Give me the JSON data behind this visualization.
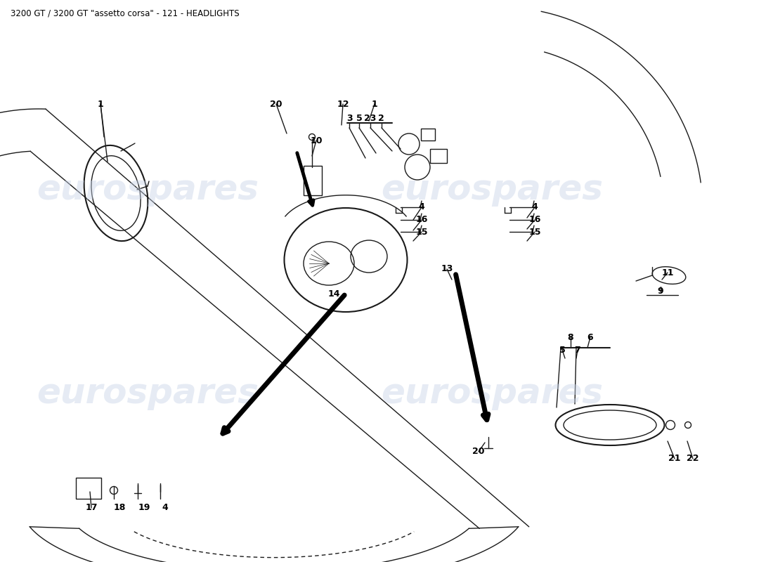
{
  "title": "3200 GT / 3200 GT \"assetto corsa\" - 121 - HEADLIGHTS",
  "title_fontsize": 8.5,
  "bg_color": "#ffffff",
  "fig_width": 11.0,
  "fig_height": 8.0,
  "watermark_text": "eurospares",
  "watermark_color": "#c8d4e8",
  "watermark_alpha": 0.45,
  "line_color": "#1a1a1a",
  "label_fontsize": 9,
  "labels": [
    [
      "1",
      143,
      148
    ],
    [
      "1",
      533,
      148
    ],
    [
      "20",
      393,
      148
    ],
    [
      "12",
      488,
      148
    ],
    [
      "10",
      450,
      200
    ],
    [
      "3",
      497,
      168
    ],
    [
      "5",
      511,
      168
    ],
    [
      "23",
      527,
      168
    ],
    [
      "2",
      542,
      168
    ],
    [
      "4",
      600,
      295
    ],
    [
      "16",
      600,
      313
    ],
    [
      "15",
      600,
      330
    ],
    [
      "14",
      475,
      418
    ],
    [
      "13",
      636,
      383
    ],
    [
      "4",
      761,
      295
    ],
    [
      "16",
      761,
      313
    ],
    [
      "15",
      761,
      330
    ],
    [
      "11",
      950,
      388
    ],
    [
      "9",
      940,
      415
    ],
    [
      "8",
      812,
      480
    ],
    [
      "7",
      822,
      498
    ],
    [
      "6",
      840,
      480
    ],
    [
      "5",
      800,
      498
    ],
    [
      "20",
      681,
      643
    ],
    [
      "17",
      130,
      723
    ],
    [
      "18",
      170,
      723
    ],
    [
      "19",
      205,
      723
    ],
    [
      "4",
      235,
      723
    ],
    [
      "21",
      960,
      653
    ],
    [
      "22",
      986,
      653
    ]
  ]
}
